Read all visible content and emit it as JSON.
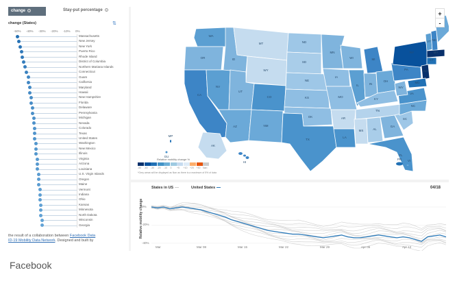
{
  "left_panel": {
    "tab_active": "change",
    "tab_inactive": "Stay-put percentage",
    "title": "change (States)",
    "ticks": [
      "-50%",
      "-40%",
      "-30%",
      "-20%",
      "-10%",
      "0%"
    ],
    "states": [
      {
        "name": "Massachusetts",
        "value": -48
      },
      {
        "name": "New Jersey",
        "value": -47
      },
      {
        "name": "New York",
        "value": -46
      },
      {
        "name": "Puerto Rico",
        "value": -45
      },
      {
        "name": "Rhode Island",
        "value": -44
      },
      {
        "name": "District of Columbia",
        "value": -43
      },
      {
        "name": "Northern Mariana Islands",
        "value": -42
      },
      {
        "name": "Connecticut",
        "value": -41
      },
      {
        "name": "Guam",
        "value": -39
      },
      {
        "name": "California",
        "value": -39
      },
      {
        "name": "Maryland",
        "value": -38
      },
      {
        "name": "Hawaii",
        "value": -38
      },
      {
        "name": "New Hampshire",
        "value": -37
      },
      {
        "name": "Florida",
        "value": -37
      },
      {
        "name": "Delaware",
        "value": -36
      },
      {
        "name": "Pennsylvania",
        "value": -36
      },
      {
        "name": "Michigan",
        "value": -35
      },
      {
        "name": "Nevada",
        "value": -35
      },
      {
        "name": "Colorado",
        "value": -34
      },
      {
        "name": "Texas",
        "value": -34
      },
      {
        "name": "United States",
        "value": -34
      },
      {
        "name": "Washington",
        "value": -33
      },
      {
        "name": "New Mexico",
        "value": -33
      },
      {
        "name": "Illinois",
        "value": -33
      },
      {
        "name": "Virginia",
        "value": -32
      },
      {
        "name": "Arizona",
        "value": -32
      },
      {
        "name": "Louisiana",
        "value": -32
      },
      {
        "name": "U.S. Virgin Islands",
        "value": -31
      },
      {
        "name": "Oregon",
        "value": -31
      },
      {
        "name": "Maine",
        "value": -31
      },
      {
        "name": "Vermont",
        "value": -30
      },
      {
        "name": "Indiana",
        "value": -30
      },
      {
        "name": "Ohio",
        "value": -30
      },
      {
        "name": "Kansas",
        "value": -29
      },
      {
        "name": "Minnesota",
        "value": -29
      },
      {
        "name": "North Dakota",
        "value": -29
      },
      {
        "name": "Wisconsin",
        "value": -28
      },
      {
        "name": "Georgia",
        "value": -28
      }
    ],
    "credit_line1": "the result of a collaboration between",
    "credit_link1": "Facebook Data",
    "credit_link2": "ID-19 Mobility Data Network",
    "credit_line2": ". Designed and built by"
  },
  "map": {
    "zoom_in": "+",
    "zoom_out": "-",
    "legend_title": "Relative mobility change %",
    "legend_colors": [
      "#08306b",
      "#08519c",
      "#2171b5",
      "#4292c6",
      "#6baed6",
      "#9ecae1",
      "#c6dbef",
      "#deebf7",
      "#fdae6b",
      "#e6550d",
      "#cccccc"
    ],
    "legend_labels": [
      "-50",
      "-40",
      "-30",
      "-20",
      "-10",
      "0",
      "+5",
      "+10",
      "+20",
      "+30",
      "Nan"
    ],
    "legend_note": "*Grey areas will be displayed as Nan as there is a maximum of 5% of data",
    "state_labels": [
      "WA",
      "OR",
      "CA",
      "NV",
      "ID",
      "MT",
      "WY",
      "UT",
      "AZ",
      "CO",
      "NM",
      "ND",
      "SD",
      "NE",
      "KS",
      "OK",
      "TX",
      "MN",
      "IA",
      "MO",
      "AR",
      "LA",
      "WI",
      "IL",
      "MI",
      "IN",
      "OH",
      "KY",
      "TN",
      "MS",
      "AL",
      "GA",
      "FL",
      "SC",
      "NC",
      "VA",
      "WV",
      "PA",
      "NY",
      "VT",
      "NH",
      "ME",
      "MA",
      "CT",
      "NJ",
      "MD",
      "AK",
      "HI",
      "MP",
      "GU",
      "PR",
      "VI"
    ]
  },
  "line_chart": {
    "legend_states": "States in US",
    "legend_us": "United States",
    "date": "04/18",
    "ylabel": "Relative mobility change",
    "yticks": [
      "0%",
      "-20%",
      "-40%"
    ],
    "xticks": [
      "Mar",
      "Mar 08",
      "Mar 15",
      "Mar 22",
      "Mar 29",
      "Apr 05",
      "Apr 12"
    ],
    "us_series": [
      0,
      -1,
      0,
      -2,
      -1,
      0,
      -1,
      -2,
      -3,
      -5,
      -7,
      -9,
      -11,
      -14,
      -16,
      -18,
      -20,
      -22,
      -24,
      -26,
      -27,
      -28,
      -29,
      -30,
      -30,
      -31,
      -32,
      -33,
      -34,
      -33,
      -32,
      -31,
      -33,
      -34,
      -34,
      -33,
      -32,
      -31,
      -32,
      -33,
      -34,
      -33,
      -34,
      -36,
      -38,
      -33,
      -32,
      -31,
      -33
    ]
  },
  "caption": "Facebook"
}
